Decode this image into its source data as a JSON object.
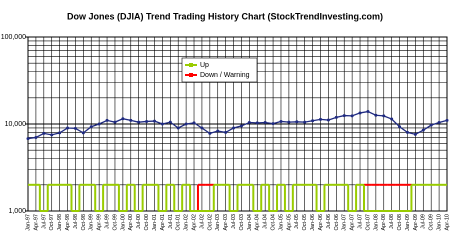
{
  "chart_data": {
    "type": "line",
    "title": "Dow Jones (DJIA) Trend Trading History Chart (StockTrendInvesting.com)",
    "categories": [
      "Jan-97",
      "Apr-97",
      "Jul-97",
      "Oct-97",
      "Jan-98",
      "Apr-98",
      "Jul-98",
      "Oct-98",
      "Jan-99",
      "Apr-99",
      "Jul-99",
      "Oct-99",
      "Jan-00",
      "Apr-00",
      "Jul-00",
      "Oct-00",
      "Jan-01",
      "Apr-01",
      "Jul-01",
      "Oct-01",
      "Jan-02",
      "Apr-02",
      "Jul-02",
      "Oct-02",
      "Jan-03",
      "Apr-03",
      "Jul-03",
      "Oct-03",
      "Jan-04",
      "Apr-04",
      "Jul-04",
      "Oct-04",
      "Jan-05",
      "Apr-05",
      "Jul-05",
      "Oct-05",
      "Jan-06",
      "Apr-06",
      "Jul-06",
      "Oct-06",
      "Jan-07",
      "Apr-07",
      "Jul-07",
      "Oct-07",
      "Jan-08",
      "Apr-08",
      "Jul-08",
      "Oct-08",
      "Jan-09",
      "Apr-09",
      "Jul-09",
      "Oct-09",
      "Jan-10",
      "Apr-10"
    ],
    "series": [
      {
        "name": "DJIA",
        "color": "#1f2a80",
        "values": [
          6800,
          7000,
          7800,
          7500,
          7900,
          9000,
          8900,
          7900,
          9300,
          10000,
          11000,
          10500,
          11500,
          11000,
          10500,
          10700,
          10800,
          10000,
          10500,
          9000,
          10000,
          10300,
          9000,
          7800,
          8300,
          8000,
          9000,
          9500,
          10400,
          10300,
          10400,
          10100,
          10700,
          10500,
          10600,
          10500,
          10900,
          11300,
          11100,
          11900,
          12500,
          12400,
          13400,
          13900,
          12600,
          12400,
          11400,
          9300,
          8000,
          7600,
          8500,
          9700,
          10400,
          11000
        ]
      },
      {
        "name": "Up",
        "color": "#99cc00",
        "values": [
          2000,
          2000,
          1000,
          2000,
          2000,
          2000,
          1000,
          2000,
          2000,
          1000,
          2000,
          2000,
          1000,
          2000,
          1000,
          2000,
          2000,
          1000,
          2000,
          1000,
          2000,
          1000,
          1000,
          1000,
          2000,
          2000,
          1000,
          2000,
          2000,
          1000,
          2000,
          1000,
          2000,
          1000,
          2000,
          2000,
          2000,
          1000,
          2000,
          2000,
          2000,
          1000,
          2000,
          1000,
          1000,
          1000,
          1000,
          1000,
          1000,
          2000,
          2000,
          2000,
          2000,
          2000
        ]
      },
      {
        "name": "Down / Warning",
        "color": "#ff0000",
        "values": [
          1000,
          1000,
          1000,
          1000,
          1000,
          1000,
          1000,
          1000,
          1000,
          1000,
          1000,
          1000,
          1000,
          1000,
          1000,
          1000,
          1000,
          1000,
          1000,
          1000,
          1000,
          1000,
          2000,
          2000,
          1000,
          1000,
          1000,
          1000,
          1000,
          1000,
          1000,
          1000,
          1000,
          1000,
          1000,
          1000,
          1000,
          1000,
          1000,
          1000,
          1000,
          1000,
          1000,
          2000,
          2000,
          2000,
          2000,
          2000,
          2000,
          1000,
          1000,
          1000,
          1000,
          1000
        ]
      }
    ],
    "ylim": [
      1000,
      100000
    ],
    "log_scale": true,
    "yticks": [
      {
        "value": 1000,
        "label": "1,000"
      },
      {
        "value": 10000,
        "label": "10,000"
      },
      {
        "value": 100000,
        "label": "100,000"
      }
    ],
    "grid": true,
    "legend": "upper-left"
  }
}
